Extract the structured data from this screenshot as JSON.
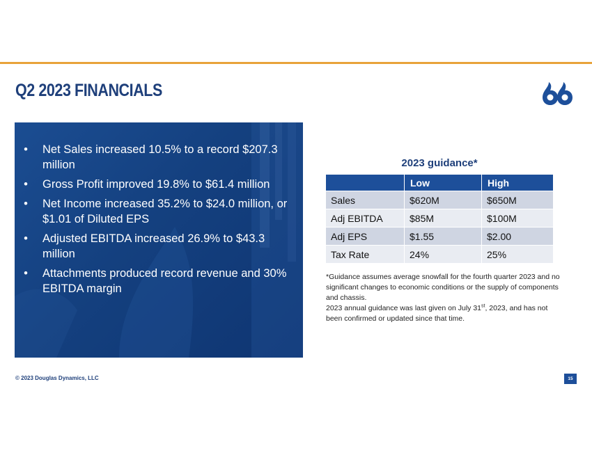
{
  "title": "Q2 2023 FINANCIALS",
  "bullets": [
    "Net Sales increased 10.5% to a record $207.3 million",
    "Gross Profit improved 19.8% to $61.4 million",
    "Net Income increased 35.2% to $24.0 million, or $1.01 of Diluted EPS",
    "Adjusted EBITDA increased 26.9% to $43.3 million",
    "Attachments produced record revenue and 30% EBITDA margin"
  ],
  "bullet_glyph": "•",
  "guidance": {
    "title": "2023 guidance*",
    "columns": [
      "",
      "Low",
      "High"
    ],
    "rows": [
      {
        "label": "Sales",
        "low": "$620M",
        "high": "$650M"
      },
      {
        "label": "Adj EBITDA",
        "low": "$85M",
        "high": "$100M"
      },
      {
        "label": "Adj EPS",
        "low": "$1.55",
        "high": "$2.00"
      },
      {
        "label": "Tax Rate",
        "low": "24%",
        "high": "25%"
      }
    ]
  },
  "footnote": {
    "line1": "*Guidance assumes average snowfall for the fourth quarter 2023 and no significant changes to economic conditions or the supply of components and chassis.",
    "line2_before": "2023 annual guidance was last given on July 31",
    "line2_sup": "st",
    "line2_after": ", 2023, and has not been confirmed or updated since that time."
  },
  "footer": {
    "copyright": "© 2023 Douglas Dynamics, LLC",
    "page_number": "15"
  },
  "colors": {
    "accent_rule": "#e8a33a",
    "brand_blue": "#1e3f7a",
    "table_header": "#1d4f9a",
    "panel_blue": "#14407f"
  }
}
